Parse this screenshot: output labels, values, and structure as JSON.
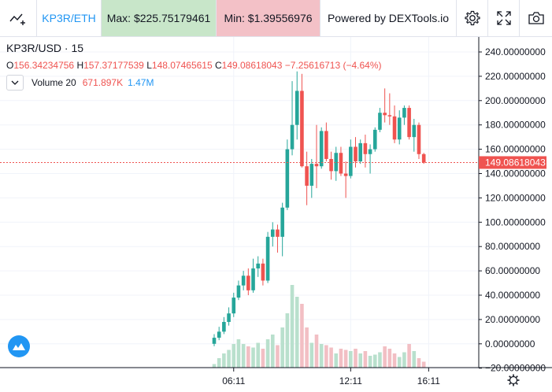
{
  "toolbar": {
    "symbol": "KP3R/ETH",
    "max_label": "Max: $225.75179461",
    "min_label": "Min: $1.39556976",
    "powered_by": "Powered by DEXTools.io"
  },
  "legend": {
    "symbol": "KP3R/USD",
    "separator": "·",
    "interval": "15",
    "ohlc": [
      {
        "key": "O",
        "value": "156.34234756"
      },
      {
        "key": "H",
        "value": "157.37177539"
      },
      {
        "key": "L",
        "value": "148.07465615"
      },
      {
        "key": "C",
        "value": "149.08618043"
      }
    ],
    "change": "−7.25616713 (−4.64%)",
    "volume_label": "Volume 20",
    "volume_value_1": "671.897K",
    "volume_value_2": "1.47M"
  },
  "colors": {
    "up": "#26a69a",
    "down": "#ef5350",
    "vol_up": "#b9e0cd",
    "vol_down": "#f2bfc4",
    "last_price_line": "#ef5350",
    "accent": "#2196f3"
  },
  "icons": [
    "indicators-icon",
    "settings-icon",
    "fullscreen-icon",
    "camera-icon",
    "chart-logo-icon",
    "chevron-down-icon",
    "axis-settings-icon"
  ],
  "chart_data": {
    "type": "candlestick",
    "title": "",
    "xlabel": "",
    "ylabel": "",
    "ylim": [
      -20,
      240
    ],
    "y_ticks": [
      "240.00000000",
      "220.00000000",
      "200.00000000",
      "180.00000000",
      "160.00000000",
      "140.00000000",
      "120.00000000",
      "100.00000000",
      "80.00000000",
      "60.00000000",
      "40.00000000",
      "20.00000000",
      "0.00000000",
      "−20.00000000"
    ],
    "y_tick_values": [
      240,
      220,
      200,
      180,
      160,
      140,
      120,
      100,
      80,
      60,
      40,
      20,
      0,
      -20
    ],
    "x_ticks": [
      {
        "label": "06:11",
        "index": 4
      },
      {
        "label": "12:11",
        "index": 28
      },
      {
        "label": "16:11",
        "index": 44
      }
    ],
    "last_price": 149.08618043,
    "last_price_label": "149.08618043",
    "candles": [
      {
        "o": 0,
        "h": 8,
        "l": -2,
        "c": 5,
        "v": 0.3
      },
      {
        "o": 5,
        "h": 14,
        "l": 3,
        "c": 10,
        "v": 0.8
      },
      {
        "o": 10,
        "h": 22,
        "l": 8,
        "c": 18,
        "v": 1.2
      },
      {
        "o": 18,
        "h": 30,
        "l": 15,
        "c": 25,
        "v": 1.5
      },
      {
        "o": 25,
        "h": 42,
        "l": 22,
        "c": 38,
        "v": 2.0
      },
      {
        "o": 38,
        "h": 52,
        "l": 36,
        "c": 48,
        "v": 2.4
      },
      {
        "o": 48,
        "h": 60,
        "l": 44,
        "c": 56,
        "v": 2.0
      },
      {
        "o": 56,
        "h": 62,
        "l": 40,
        "c": 44,
        "v": 1.8
      },
      {
        "o": 44,
        "h": 70,
        "l": 42,
        "c": 62,
        "v": 1.7
      },
      {
        "o": 62,
        "h": 72,
        "l": 55,
        "c": 66,
        "v": 2.1
      },
      {
        "o": 66,
        "h": 70,
        "l": 48,
        "c": 52,
        "v": 1.6
      },
      {
        "o": 52,
        "h": 92,
        "l": 50,
        "c": 88,
        "v": 2.4
      },
      {
        "o": 88,
        "h": 100,
        "l": 80,
        "c": 94,
        "v": 2.8
      },
      {
        "o": 94,
        "h": 98,
        "l": 75,
        "c": 88,
        "v": 1.9
      },
      {
        "o": 88,
        "h": 116,
        "l": 72,
        "c": 112,
        "v": 3.4
      },
      {
        "o": 112,
        "h": 168,
        "l": 110,
        "c": 160,
        "v": 4.6
      },
      {
        "o": 160,
        "h": 216,
        "l": 155,
        "c": 180,
        "v": 7.0
      },
      {
        "o": 180,
        "h": 224,
        "l": 168,
        "c": 208,
        "v": 6.0
      },
      {
        "o": 208,
        "h": 222,
        "l": 145,
        "c": 146,
        "v": 5.4
      },
      {
        "o": 146,
        "h": 158,
        "l": 114,
        "c": 130,
        "v": 3.4
      },
      {
        "o": 130,
        "h": 152,
        "l": 120,
        "c": 148,
        "v": 2.1
      },
      {
        "o": 148,
        "h": 180,
        "l": 128,
        "c": 146,
        "v": 2.8
      },
      {
        "o": 146,
        "h": 178,
        "l": 144,
        "c": 175,
        "v": 2.0
      },
      {
        "o": 175,
        "h": 182,
        "l": 150,
        "c": 152,
        "v": 1.9
      },
      {
        "o": 152,
        "h": 158,
        "l": 135,
        "c": 142,
        "v": 1.7
      },
      {
        "o": 142,
        "h": 162,
        "l": 134,
        "c": 157,
        "v": 1.2
      },
      {
        "o": 157,
        "h": 162,
        "l": 138,
        "c": 140,
        "v": 1.6
      },
      {
        "o": 140,
        "h": 150,
        "l": 120,
        "c": 138,
        "v": 1.5
      },
      {
        "o": 138,
        "h": 168,
        "l": 136,
        "c": 162,
        "v": 1.4
      },
      {
        "o": 162,
        "h": 170,
        "l": 145,
        "c": 150,
        "v": 1.6
      },
      {
        "o": 150,
        "h": 168,
        "l": 148,
        "c": 165,
        "v": 1.2
      },
      {
        "o": 165,
        "h": 172,
        "l": 145,
        "c": 156,
        "v": 1.4
      },
      {
        "o": 156,
        "h": 164,
        "l": 140,
        "c": 160,
        "v": 1.0
      },
      {
        "o": 160,
        "h": 178,
        "l": 158,
        "c": 176,
        "v": 1.1
      },
      {
        "o": 176,
        "h": 194,
        "l": 174,
        "c": 190,
        "v": 1.3
      },
      {
        "o": 190,
        "h": 210,
        "l": 182,
        "c": 188,
        "v": 1.8
      },
      {
        "o": 188,
        "h": 206,
        "l": 180,
        "c": 187,
        "v": 1.6
      },
      {
        "o": 187,
        "h": 196,
        "l": 165,
        "c": 168,
        "v": 1.2
      },
      {
        "o": 168,
        "h": 192,
        "l": 164,
        "c": 186,
        "v": 0.9
      },
      {
        "o": 186,
        "h": 196,
        "l": 180,
        "c": 194,
        "v": 1.3
      },
      {
        "o": 194,
        "h": 196,
        "l": 168,
        "c": 170,
        "v": 2.0
      },
      {
        "o": 170,
        "h": 185,
        "l": 158,
        "c": 180,
        "v": 1.4
      },
      {
        "o": 180,
        "h": 182,
        "l": 152,
        "c": 156,
        "v": 0.8
      },
      {
        "o": 156,
        "h": 157,
        "l": 148,
        "c": 149,
        "v": 0.5
      }
    ]
  }
}
